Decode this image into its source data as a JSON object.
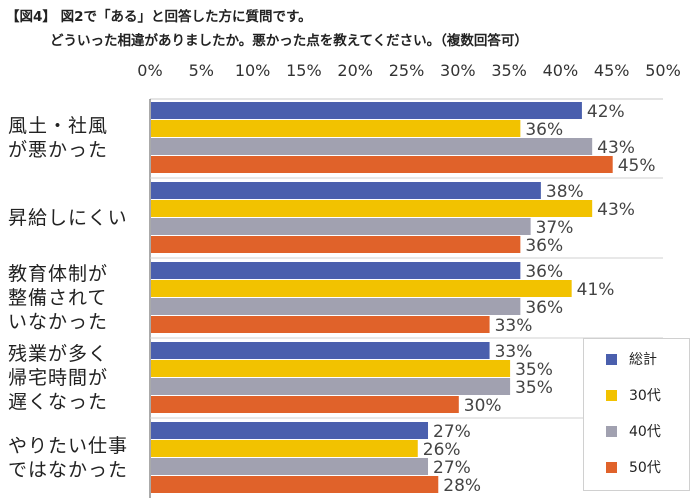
{
  "title_line1": "【図4】 図2で「ある」と回答した方に質問です。",
  "title_line2": "どういった相違がありましたか。悪かった点を教えてください。（複数回答可）",
  "chart_data": {
    "type": "bar",
    "orientation": "horizontal",
    "x_ticks": [
      "0%",
      "5%",
      "10%",
      "15%",
      "20%",
      "25%",
      "30%",
      "35%",
      "40%",
      "45%",
      "50%"
    ],
    "xlim": [
      0,
      50
    ],
    "categories": [
      [
        "風土・社風",
        "が悪かった"
      ],
      [
        "昇給しにくい"
      ],
      [
        "教育体制が",
        "整備されて",
        "いなかった"
      ],
      [
        "残業が多く",
        "帰宅時間が",
        "遅くなった"
      ],
      [
        "やりたい仕事",
        "ではなかった"
      ]
    ],
    "series": [
      {
        "name": "総計",
        "color": "#4a5fad",
        "values": [
          42,
          38,
          36,
          33,
          27
        ]
      },
      {
        "name": "30代",
        "color": "#f2c200",
        "values": [
          36,
          43,
          41,
          35,
          26
        ]
      },
      {
        "name": "40代",
        "color": "#a1a1b0",
        "values": [
          43,
          37,
          36,
          35,
          27
        ]
      },
      {
        "name": "50代",
        "color": "#e0622a",
        "values": [
          45,
          36,
          33,
          30,
          28
        ]
      }
    ],
    "value_suffix": "%",
    "legend_position": "bottom-right",
    "grid": false
  }
}
